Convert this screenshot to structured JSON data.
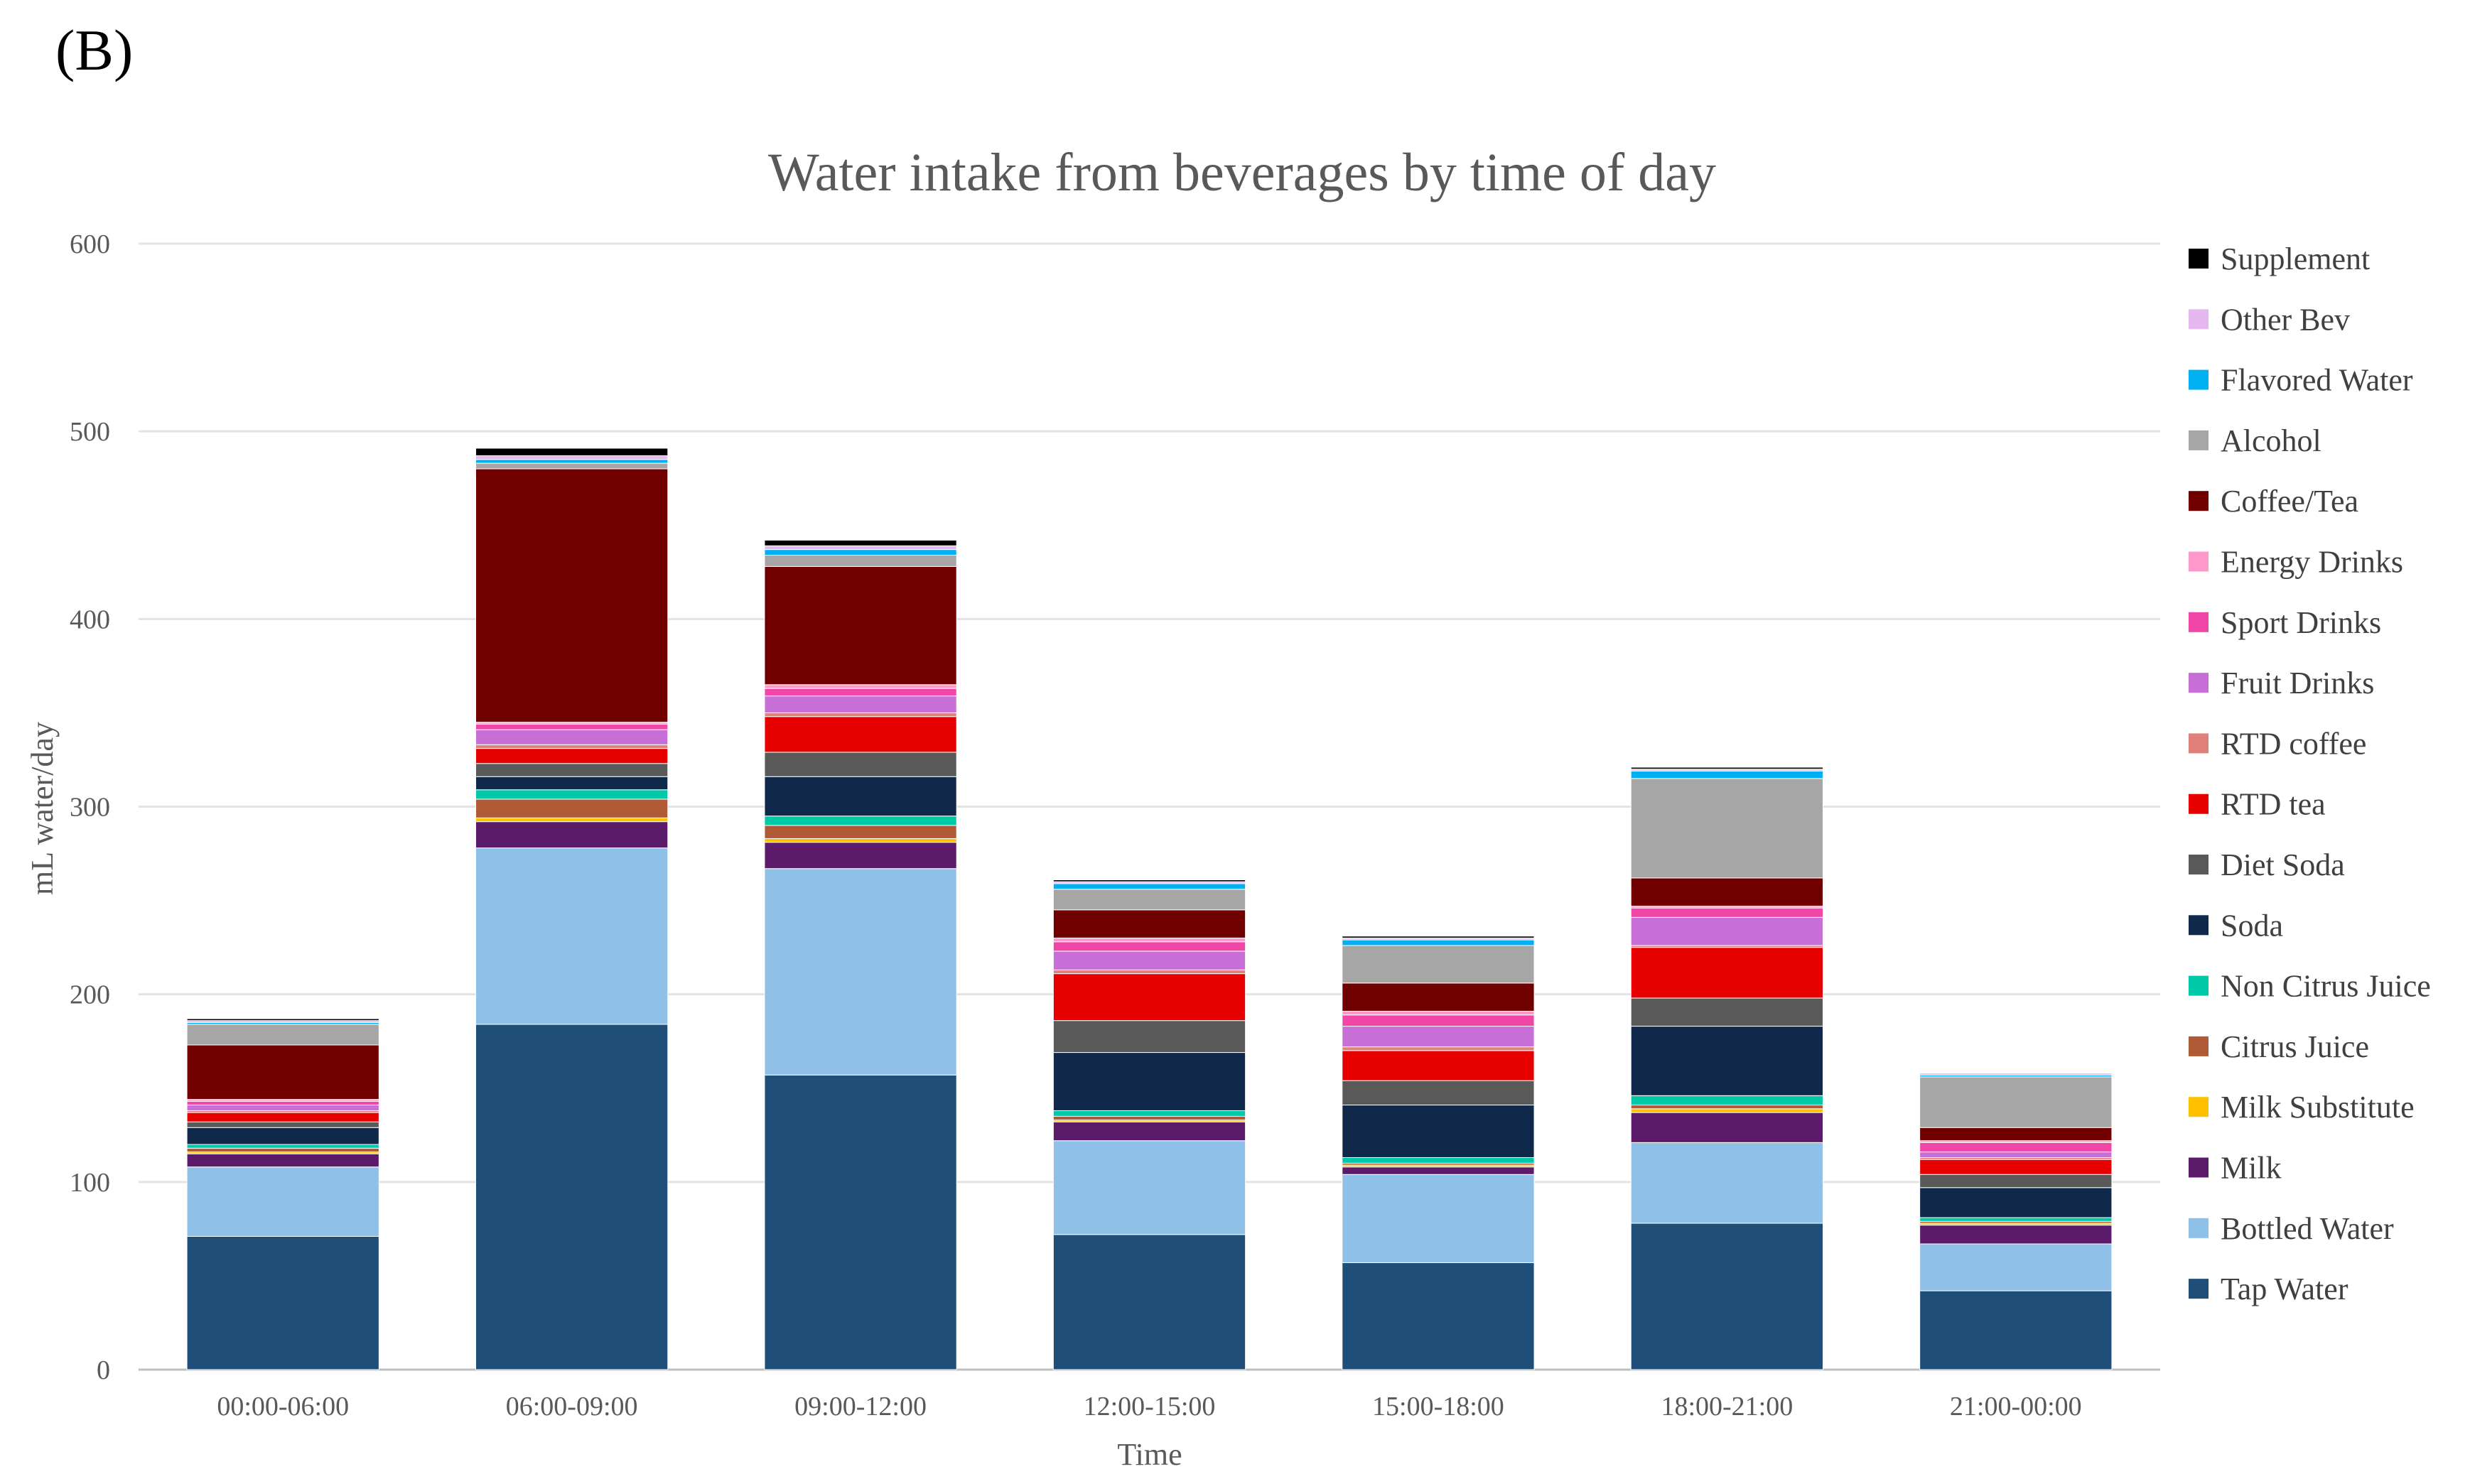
{
  "panel_label": "(B)",
  "chart_data": {
    "type": "bar",
    "stacked": true,
    "title": "Water intake from beverages by time of day",
    "xlabel": "Time",
    "ylabel": "mL water/day",
    "ylim": [
      0,
      600
    ],
    "yticks": [
      0,
      100,
      200,
      300,
      400,
      500,
      600
    ],
    "grid": true,
    "legend_position": "right",
    "categories": [
      "00:00-06:00",
      "06:00-09:00",
      "09:00-12:00",
      "12:00-15:00",
      "15:00-18:00",
      "18:00-21:00",
      "21:00-00:00"
    ],
    "series": [
      {
        "name": "Tap Water",
        "color": "#1F4E79",
        "values": [
          71,
          184,
          157,
          72,
          57,
          78,
          42
        ]
      },
      {
        "name": "Bottled Water",
        "color": "#8FC0E8",
        "values": [
          37,
          94,
          110,
          50,
          47,
          43,
          25
        ]
      },
      {
        "name": "Milk",
        "color": "#5C1A6B",
        "values": [
          7,
          14,
          14,
          10,
          4,
          16,
          10
        ]
      },
      {
        "name": "Milk Substitute",
        "color": "#FFC000",
        "values": [
          1,
          2,
          2,
          1,
          1,
          2,
          1
        ]
      },
      {
        "name": "Citrus Juice",
        "color": "#B15A36",
        "values": [
          2,
          10,
          7,
          2,
          1,
          2,
          1
        ]
      },
      {
        "name": "Non Citrus Juice",
        "color": "#00C9A7",
        "values": [
          2,
          5,
          5,
          3,
          3,
          5,
          2
        ]
      },
      {
        "name": "Soda",
        "color": "#10294A",
        "values": [
          9,
          7,
          21,
          31,
          28,
          37,
          16
        ]
      },
      {
        "name": "Diet Soda",
        "color": "#595959",
        "values": [
          3,
          7,
          13,
          17,
          13,
          15,
          7
        ]
      },
      {
        "name": "RTD tea",
        "color": "#E60000",
        "values": [
          5,
          8,
          19,
          25,
          16,
          27,
          8
        ]
      },
      {
        "name": "RTD coffee",
        "color": "#E0807A",
        "values": [
          1,
          2,
          2,
          2,
          2,
          1,
          1
        ]
      },
      {
        "name": "Fruit Drinks",
        "color": "#C76FD6",
        "values": [
          3,
          8,
          9,
          10,
          11,
          15,
          3
        ]
      },
      {
        "name": "Sport Drinks",
        "color": "#F046A8",
        "values": [
          2,
          3,
          4,
          5,
          6,
          5,
          5
        ]
      },
      {
        "name": "Energy Drinks",
        "color": "#FF99CC",
        "values": [
          1,
          1,
          2,
          2,
          2,
          1,
          1
        ]
      },
      {
        "name": "Coffee/Tea",
        "color": "#700000",
        "values": [
          29,
          135,
          63,
          15,
          15,
          15,
          7
        ]
      },
      {
        "name": "Alcohol",
        "color": "#A6A6A6",
        "values": [
          11,
          3,
          6,
          11,
          20,
          53,
          27
        ]
      },
      {
        "name": "Flavored Water",
        "color": "#00B0F0",
        "values": [
          1,
          2,
          3,
          3,
          3,
          4,
          1
        ]
      },
      {
        "name": "Other Bev",
        "color": "#E6B8F0",
        "values": [
          1,
          2,
          2,
          1,
          1,
          1,
          1
        ]
      },
      {
        "name": "Supplement",
        "color": "#000000",
        "values": [
          1,
          4,
          3,
          1,
          1,
          1,
          0
        ]
      }
    ]
  }
}
